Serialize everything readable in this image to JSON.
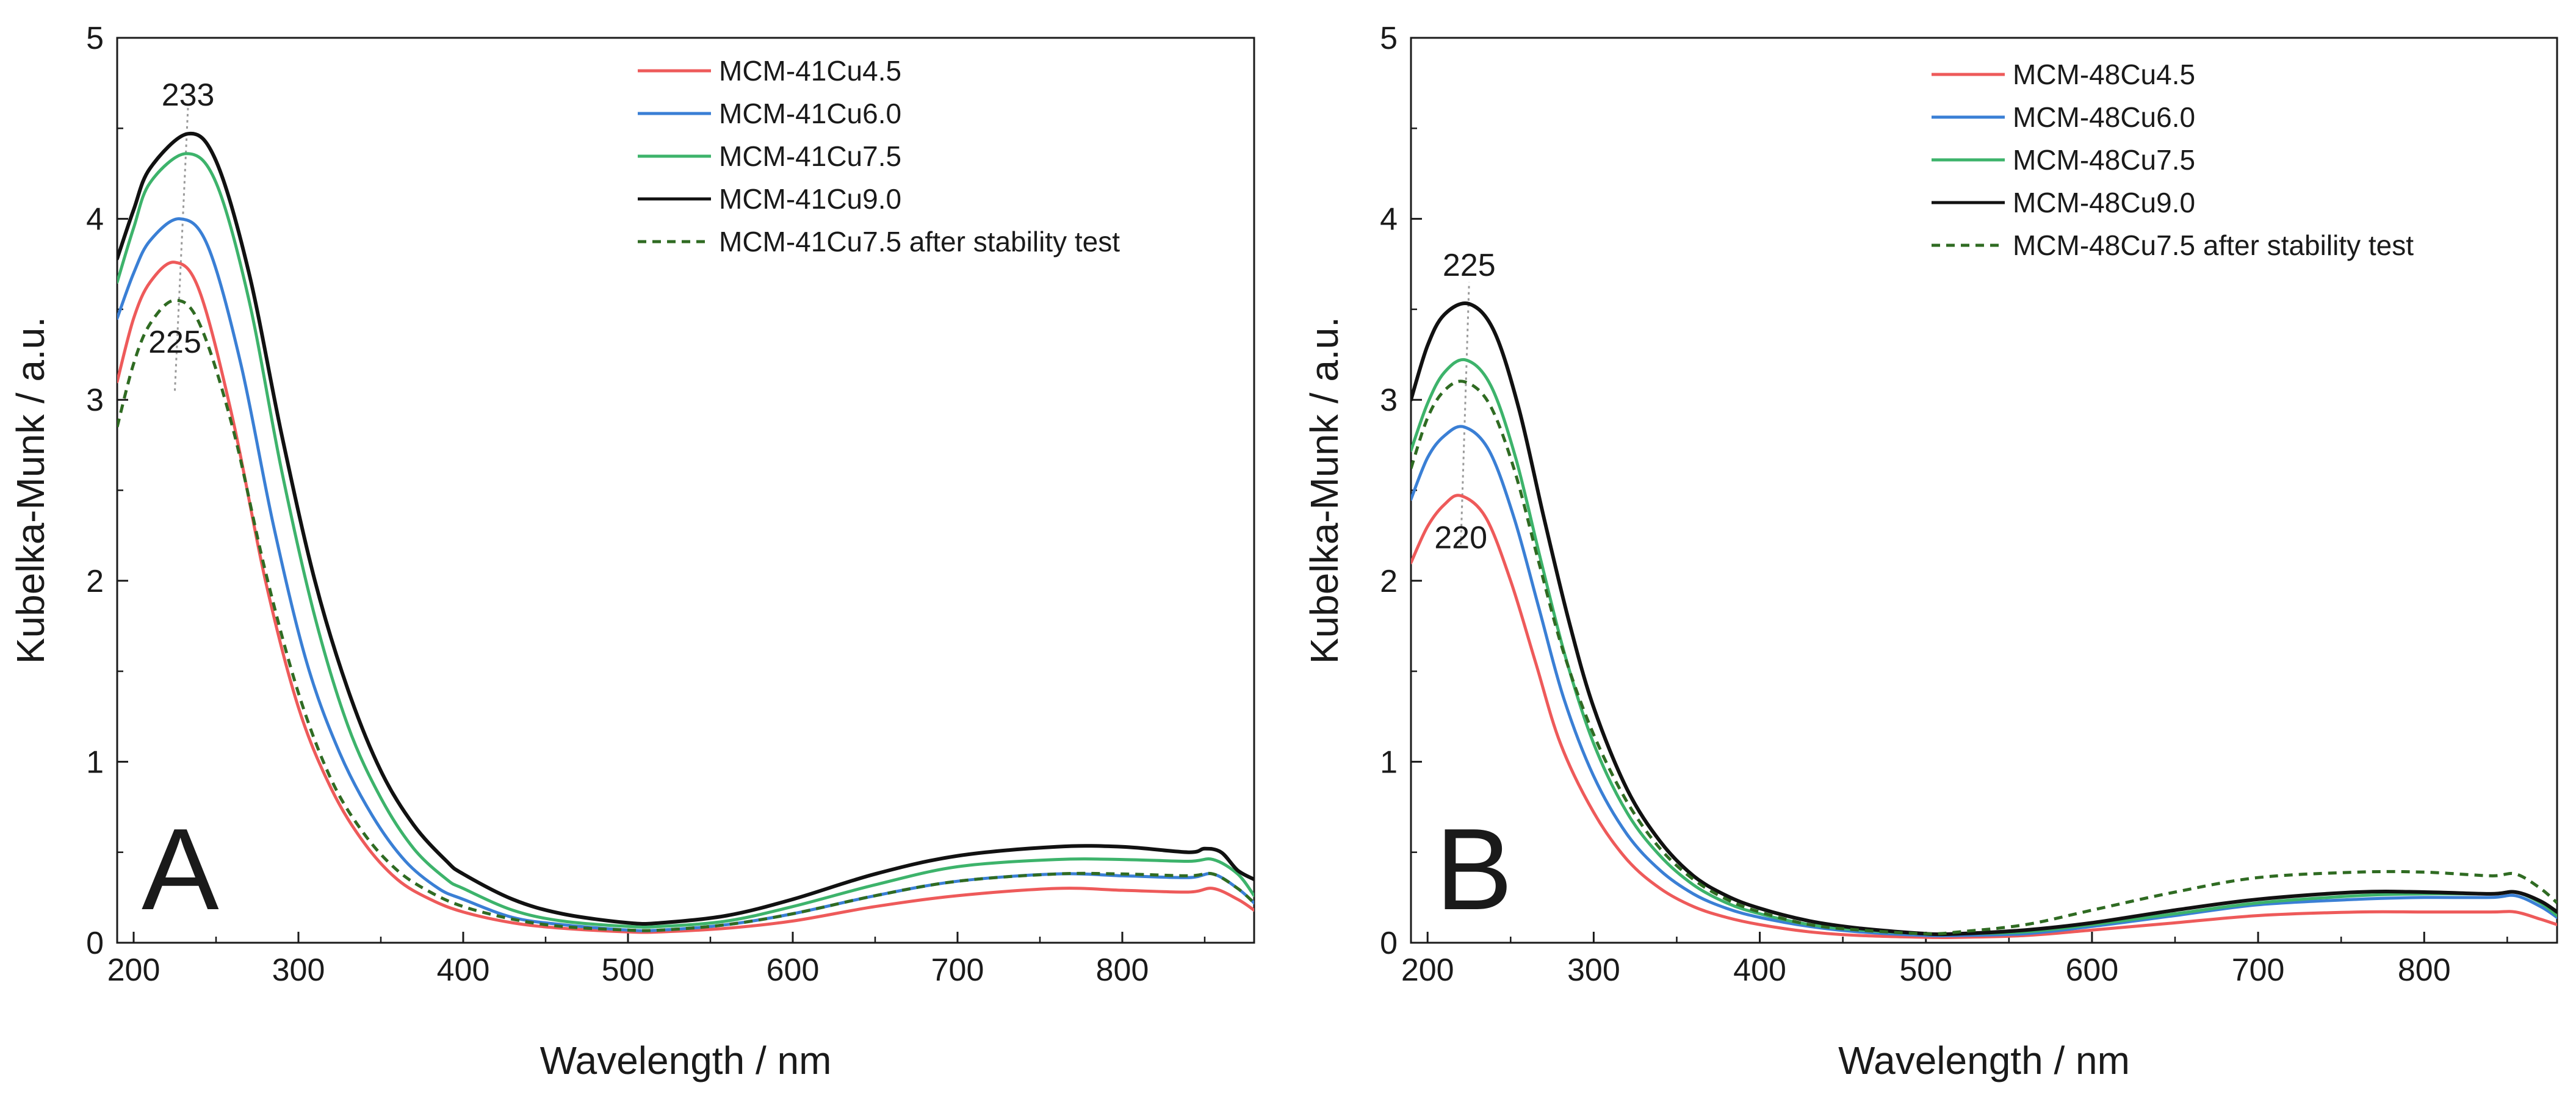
{
  "chart_data": [
    {
      "type": "line",
      "panel_letter": "A",
      "xlabel": "Wavelength / nm",
      "ylabel": "Kubelka-Munk / a.u.",
      "xlim": [
        190,
        880
      ],
      "ylim": [
        0,
        5
      ],
      "x_ticks": [
        "200",
        "300",
        "400",
        "500",
        "600",
        "700",
        "800"
      ],
      "y_ticks": [
        "0",
        "1",
        "2",
        "3",
        "4",
        "5"
      ],
      "x_tick_values": [
        200,
        300,
        400,
        500,
        600,
        700,
        800
      ],
      "y_tick_values": [
        0,
        1,
        2,
        3,
        4,
        5
      ],
      "legend_position": "top-right",
      "annotations": [
        {
          "text": "233",
          "x": 233,
          "y": 4.47,
          "placement": "above"
        },
        {
          "text": "225",
          "x": 225,
          "y": 3.55,
          "placement": "below"
        }
      ],
      "guide": {
        "x_from": 225,
        "y_from": 3.05,
        "x_to": 233,
        "y_to": 4.62
      },
      "series": [
        {
          "name": "MCM-41Cu4.5",
          "color": "#ee5a5a",
          "dashed": false,
          "x": [
            190,
            200,
            210,
            225,
            240,
            260,
            280,
            300,
            320,
            340,
            360,
            380,
            400,
            430,
            460,
            500,
            520,
            560,
            600,
            650,
            700,
            760,
            800,
            840,
            855,
            870,
            880
          ],
          "y": [
            3.1,
            3.45,
            3.65,
            3.76,
            3.6,
            2.9,
            2.0,
            1.3,
            0.85,
            0.55,
            0.35,
            0.24,
            0.17,
            0.11,
            0.08,
            0.06,
            0.06,
            0.08,
            0.12,
            0.2,
            0.26,
            0.3,
            0.29,
            0.28,
            0.3,
            0.24,
            0.18
          ]
        },
        {
          "name": "MCM-41Cu6.0",
          "color": "#3a7fd5",
          "dashed": false,
          "x": [
            190,
            200,
            210,
            228,
            245,
            265,
            285,
            305,
            325,
            345,
            365,
            385,
            400,
            430,
            460,
            500,
            520,
            560,
            600,
            650,
            700,
            760,
            800,
            840,
            855,
            870,
            880
          ],
          "y": [
            3.45,
            3.7,
            3.88,
            4.0,
            3.85,
            3.2,
            2.3,
            1.55,
            1.05,
            0.7,
            0.45,
            0.3,
            0.24,
            0.14,
            0.1,
            0.07,
            0.07,
            0.1,
            0.16,
            0.26,
            0.34,
            0.38,
            0.37,
            0.36,
            0.38,
            0.3,
            0.22
          ]
        },
        {
          "name": "MCM-41Cu7.5",
          "color": "#3db36b",
          "dashed": false,
          "x": [
            190,
            200,
            210,
            232,
            250,
            270,
            290,
            310,
            330,
            350,
            370,
            390,
            400,
            430,
            460,
            500,
            520,
            560,
            600,
            650,
            700,
            760,
            800,
            840,
            855,
            870,
            880
          ],
          "y": [
            3.65,
            3.95,
            4.2,
            4.36,
            4.2,
            3.55,
            2.6,
            1.8,
            1.2,
            0.8,
            0.52,
            0.35,
            0.3,
            0.18,
            0.12,
            0.09,
            0.09,
            0.12,
            0.2,
            0.32,
            0.42,
            0.46,
            0.46,
            0.45,
            0.46,
            0.38,
            0.26
          ]
        },
        {
          "name": "MCM-41Cu9.0",
          "color": "#111111",
          "dashed": false,
          "x": [
            190,
            200,
            210,
            233,
            250,
            270,
            290,
            310,
            330,
            350,
            370,
            390,
            400,
            430,
            460,
            500,
            520,
            560,
            600,
            650,
            700,
            760,
            800,
            840,
            850,
            860,
            870,
            880
          ],
          "y": [
            3.78,
            4.05,
            4.28,
            4.47,
            4.32,
            3.7,
            2.8,
            2.0,
            1.4,
            0.95,
            0.65,
            0.45,
            0.38,
            0.24,
            0.16,
            0.11,
            0.11,
            0.15,
            0.24,
            0.38,
            0.48,
            0.53,
            0.53,
            0.5,
            0.52,
            0.5,
            0.4,
            0.35
          ]
        },
        {
          "name": "MCM-41Cu7.5 after stability test",
          "color": "#2f6b22",
          "dashed": true,
          "x": [
            190,
            200,
            210,
            225,
            240,
            260,
            280,
            300,
            320,
            340,
            360,
            380,
            400,
            430,
            460,
            500,
            520,
            560,
            600,
            650,
            700,
            760,
            800,
            840,
            855,
            870,
            880
          ],
          "y": [
            2.85,
            3.2,
            3.42,
            3.55,
            3.42,
            2.85,
            2.05,
            1.38,
            0.9,
            0.6,
            0.4,
            0.28,
            0.2,
            0.13,
            0.09,
            0.07,
            0.07,
            0.1,
            0.16,
            0.26,
            0.34,
            0.38,
            0.38,
            0.37,
            0.38,
            0.3,
            0.22
          ]
        }
      ]
    },
    {
      "type": "line",
      "panel_letter": "B",
      "xlabel": "Wavelength / nm",
      "ylabel": "Kubelka-Munk / a.u.",
      "xlim": [
        190,
        880
      ],
      "ylim": [
        0,
        5
      ],
      "x_ticks": [
        "200",
        "300",
        "400",
        "500",
        "600",
        "700",
        "800"
      ],
      "y_ticks": [
        "0",
        "1",
        "2",
        "3",
        "4",
        "5"
      ],
      "x_tick_values": [
        200,
        300,
        400,
        500,
        600,
        700,
        800
      ],
      "y_tick_values": [
        0,
        1,
        2,
        3,
        4,
        5
      ],
      "legend_position": "top-right",
      "annotations": [
        {
          "text": "225",
          "x": 225,
          "y": 3.53,
          "placement": "above"
        },
        {
          "text": "220",
          "x": 220,
          "y": 2.47,
          "placement": "below"
        }
      ],
      "guide": {
        "x_from": 220,
        "y_from": 2.2,
        "x_to": 225,
        "y_to": 3.65
      },
      "series": [
        {
          "name": "MCM-48Cu4.5",
          "color": "#ee5a5a",
          "dashed": false,
          "x": [
            190,
            200,
            210,
            220,
            235,
            250,
            265,
            280,
            300,
            320,
            340,
            360,
            380,
            400,
            430,
            460,
            500,
            520,
            560,
            600,
            650,
            700,
            760,
            800,
            840,
            855,
            870,
            880
          ],
          "y": [
            2.1,
            2.3,
            2.42,
            2.47,
            2.35,
            2.0,
            1.55,
            1.1,
            0.72,
            0.46,
            0.3,
            0.2,
            0.14,
            0.1,
            0.06,
            0.04,
            0.03,
            0.03,
            0.04,
            0.07,
            0.11,
            0.15,
            0.17,
            0.17,
            0.17,
            0.17,
            0.13,
            0.1
          ]
        },
        {
          "name": "MCM-48Cu6.0",
          "color": "#3a7fd5",
          "dashed": false,
          "x": [
            190,
            200,
            210,
            222,
            237,
            252,
            267,
            282,
            300,
            320,
            340,
            360,
            380,
            400,
            430,
            460,
            500,
            520,
            560,
            600,
            650,
            700,
            760,
            800,
            840,
            855,
            870,
            880
          ],
          "y": [
            2.45,
            2.68,
            2.8,
            2.85,
            2.72,
            2.35,
            1.85,
            1.35,
            0.92,
            0.6,
            0.4,
            0.27,
            0.19,
            0.14,
            0.09,
            0.06,
            0.04,
            0.04,
            0.05,
            0.09,
            0.15,
            0.21,
            0.24,
            0.25,
            0.25,
            0.26,
            0.2,
            0.14
          ]
        },
        {
          "name": "MCM-48Cu7.5",
          "color": "#3db36b",
          "dashed": false,
          "x": [
            190,
            200,
            210,
            223,
            238,
            253,
            268,
            283,
            300,
            320,
            340,
            360,
            380,
            400,
            430,
            460,
            500,
            520,
            560,
            600,
            650,
            700,
            760,
            800,
            840,
            855,
            870,
            880
          ],
          "y": [
            2.72,
            2.98,
            3.15,
            3.22,
            3.08,
            2.68,
            2.12,
            1.58,
            1.1,
            0.72,
            0.48,
            0.32,
            0.22,
            0.16,
            0.1,
            0.07,
            0.05,
            0.05,
            0.06,
            0.1,
            0.16,
            0.22,
            0.26,
            0.27,
            0.27,
            0.28,
            0.22,
            0.15
          ]
        },
        {
          "name": "MCM-48Cu9.0",
          "color": "#111111",
          "dashed": false,
          "x": [
            190,
            200,
            210,
            225,
            240,
            255,
            270,
            285,
            300,
            320,
            340,
            360,
            380,
            400,
            430,
            460,
            500,
            520,
            560,
            600,
            650,
            700,
            760,
            800,
            840,
            855,
            870,
            880
          ],
          "y": [
            3.0,
            3.3,
            3.47,
            3.53,
            3.38,
            2.95,
            2.35,
            1.78,
            1.3,
            0.85,
            0.56,
            0.37,
            0.26,
            0.19,
            0.12,
            0.08,
            0.05,
            0.05,
            0.07,
            0.11,
            0.18,
            0.24,
            0.28,
            0.28,
            0.27,
            0.28,
            0.23,
            0.17
          ]
        },
        {
          "name": "MCM-48Cu7.5 after stability test",
          "color": "#2f6b22",
          "dashed": true,
          "x": [
            190,
            200,
            210,
            222,
            237,
            252,
            267,
            282,
            300,
            320,
            340,
            360,
            380,
            400,
            430,
            460,
            500,
            520,
            560,
            600,
            650,
            700,
            760,
            800,
            840,
            855,
            870,
            880
          ],
          "y": [
            2.62,
            2.9,
            3.05,
            3.1,
            2.98,
            2.62,
            2.1,
            1.6,
            1.15,
            0.78,
            0.52,
            0.35,
            0.24,
            0.17,
            0.1,
            0.07,
            0.05,
            0.06,
            0.1,
            0.18,
            0.28,
            0.36,
            0.39,
            0.39,
            0.37,
            0.38,
            0.3,
            0.22
          ]
        }
      ]
    }
  ]
}
